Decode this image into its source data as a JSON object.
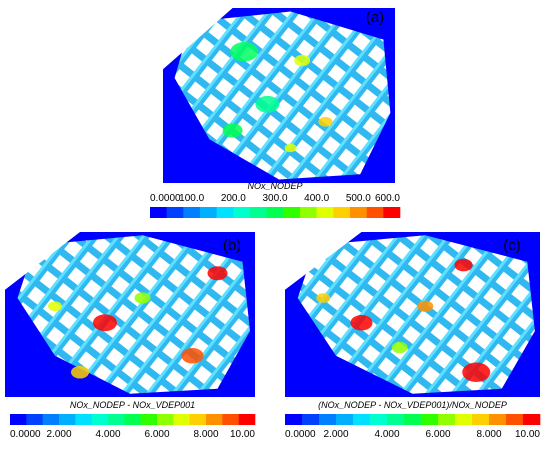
{
  "panels": [
    {
      "label": "(a)",
      "caption": "NOx_NODEP",
      "ticks": [
        "0.0000",
        "100.0",
        "200.0",
        "300.0",
        "400.0",
        "500.0",
        "600.0"
      ]
    },
    {
      "label": "(b)",
      "caption": "NOx_NODEP - NOx_VDEP001",
      "ticks": [
        "0.0000",
        "2.000",
        "4.000",
        "6.000",
        "8.000",
        "10.00"
      ]
    },
    {
      "label": "(c)",
      "caption": "(NOx_NODEP - NOx_VDEP001)/NOx_NODEP",
      "ticks": [
        "0.0000",
        "2.000",
        "4.000",
        "6.000",
        "8.000",
        "10.00"
      ]
    }
  ],
  "colors": [
    "#0000ff",
    "#0040ff",
    "#0080ff",
    "#00b0ff",
    "#00e0ff",
    "#00ffd0",
    "#00ff90",
    "#00ff50",
    "#30ff00",
    "#90ff00",
    "#e0ff00",
    "#ffd000",
    "#ff9000",
    "#ff5000",
    "#ff0000"
  ]
}
